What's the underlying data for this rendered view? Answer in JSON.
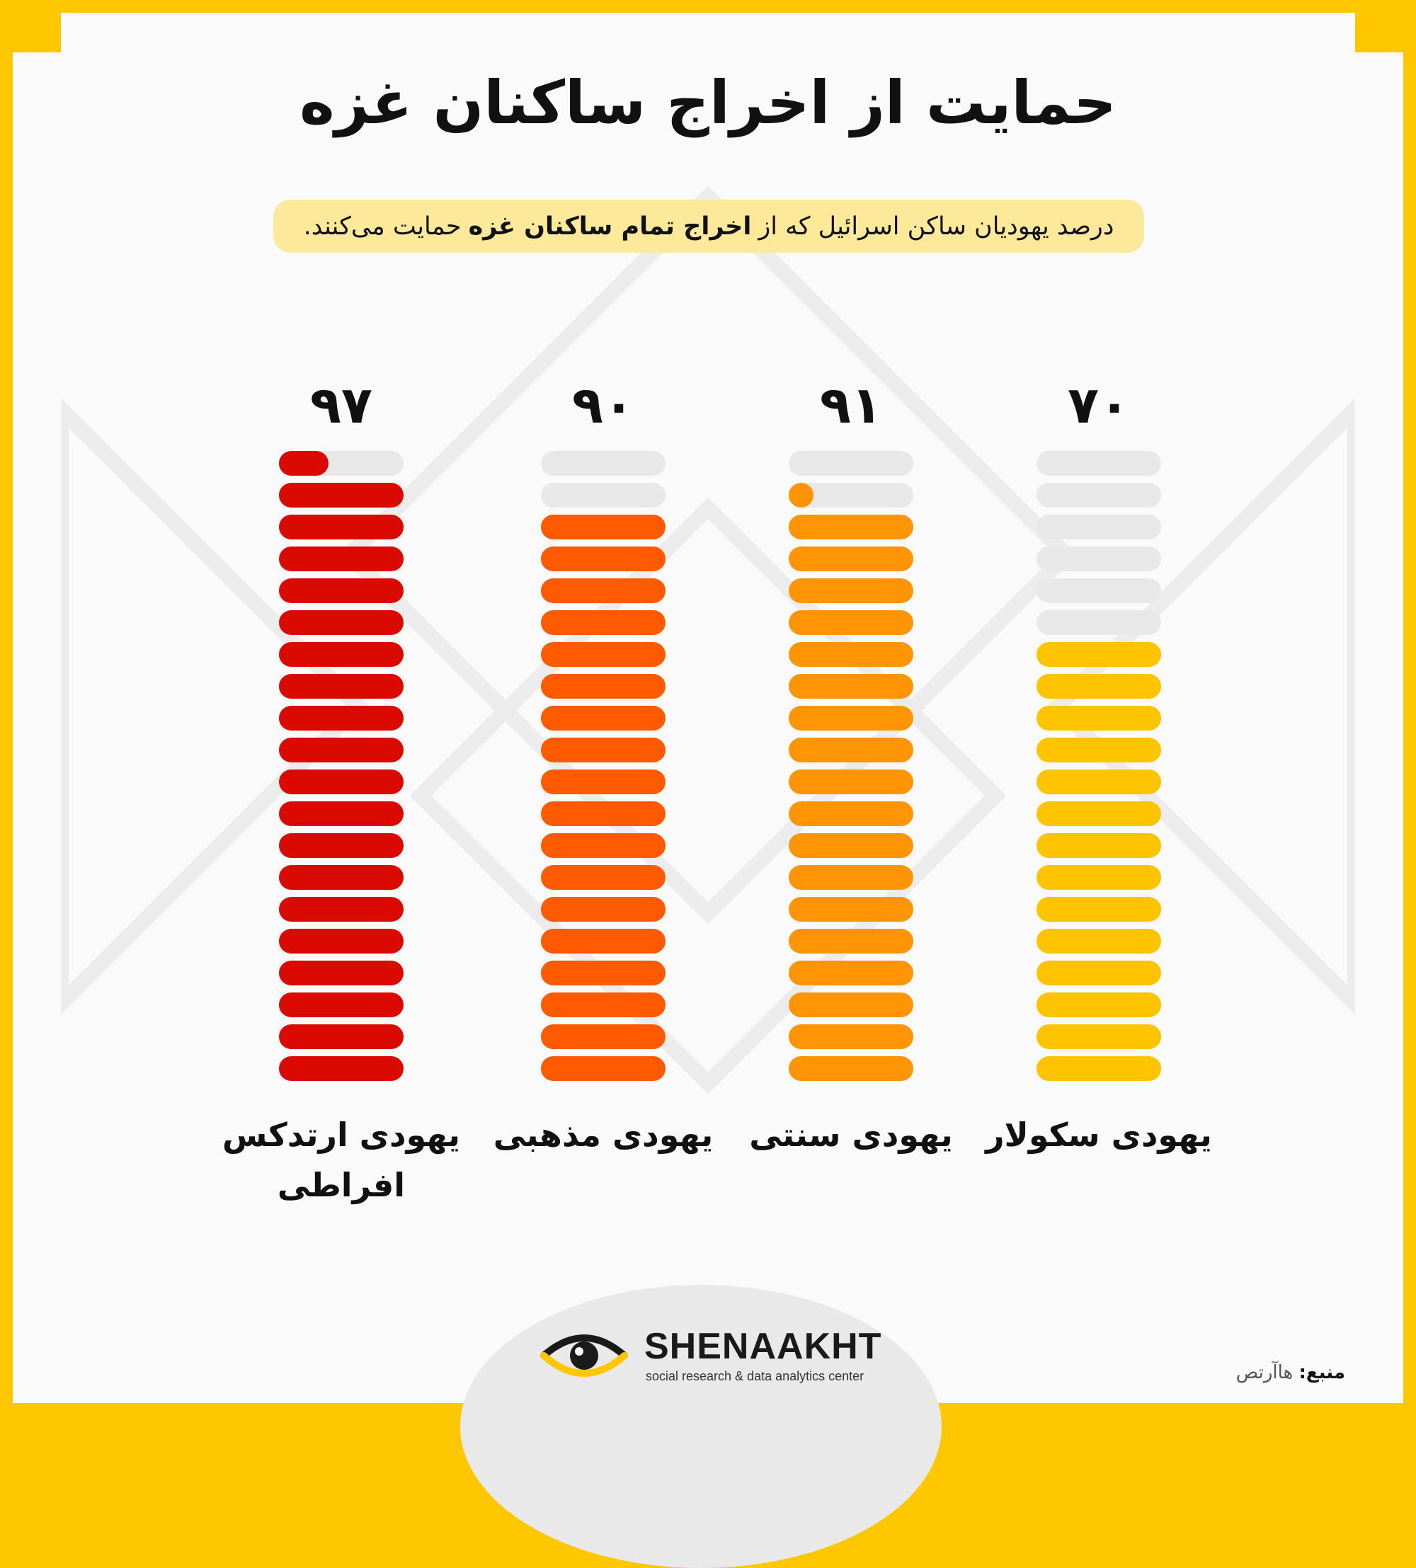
{
  "title": "حمایت از اخراج ساکنان غزه",
  "subtitle": {
    "part1": "درصد یهودیان ساکن اسرائیل که از",
    "bold": "اخراج تمام ساکنان غزه",
    "part2": "حمایت می‌کنند."
  },
  "colors": {
    "frame": "#ffc700",
    "track": "#e8e8e8",
    "subtitle_bg": "#fde99a"
  },
  "chart_data": {
    "type": "bar",
    "title": "حمایت از اخراج ساکنان غزه",
    "unit": "percent",
    "ylim": [
      0,
      100
    ],
    "pills_per_bar": 20,
    "pill_step": 5,
    "categories": [
      "یهودی سکولار",
      "یهودی سنتی",
      "یهودی مذهبی",
      "یهودی ارتدکس افراطی"
    ],
    "category_lines": [
      [
        "یهودی سکولار"
      ],
      [
        "یهودی سنتی"
      ],
      [
        "یهودی مذهبی"
      ],
      [
        "یهودی ارتدکس",
        "افراطی"
      ]
    ],
    "values": [
      70,
      91,
      90,
      97
    ],
    "value_labels": [
      "۷۰",
      "۹۱",
      "۹۰",
      "۹۷"
    ],
    "bar_colors": [
      "#ffc400",
      "#ff9405",
      "#ff5a00",
      "#da0a00"
    ]
  },
  "logo": {
    "name": "SHENAAKHT",
    "tagline": "social research & data analytics center",
    "icon": "eye-icon"
  },
  "source": {
    "label": "منبع:",
    "value": "هاآرتص"
  }
}
